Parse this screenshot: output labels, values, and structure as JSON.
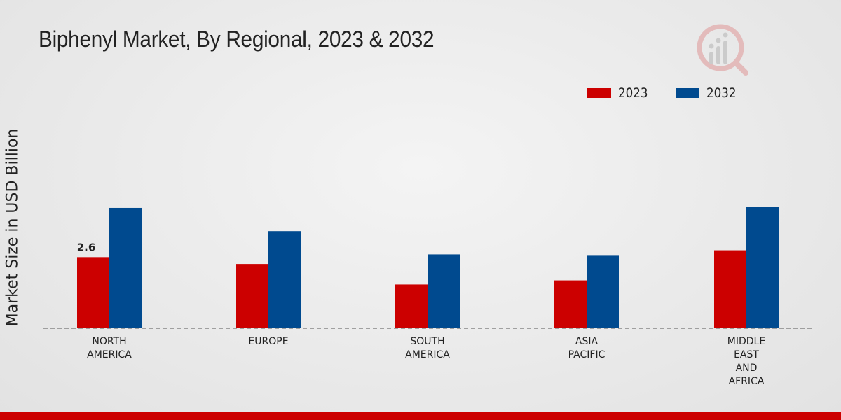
{
  "chart_data": {
    "type": "bar",
    "title": "Biphenyl Market, By Regional, 2023 & 2032",
    "xlabel": "",
    "ylabel": "Market Size in USD Billion",
    "categories": [
      [
        "NORTH",
        "AMERICA"
      ],
      [
        "EUROPE"
      ],
      [
        "SOUTH",
        "AMERICA"
      ],
      [
        "ASIA",
        "PACIFIC"
      ],
      [
        "MIDDLE",
        "EAST",
        "AND",
        "AFRICA"
      ]
    ],
    "series": [
      {
        "name": "2023",
        "color": "#cc0000",
        "values": [
          2.6,
          2.35,
          1.6,
          1.75,
          2.85
        ]
      },
      {
        "name": "2032",
        "color": "#004a8f",
        "values": [
          4.4,
          3.55,
          2.7,
          2.65,
          4.45
        ]
      }
    ],
    "data_labels": [
      {
        "series": 0,
        "index": 0,
        "text": "2.6"
      }
    ],
    "ylim": [
      0,
      10
    ],
    "grid": false,
    "legend_position": "top-right"
  }
}
